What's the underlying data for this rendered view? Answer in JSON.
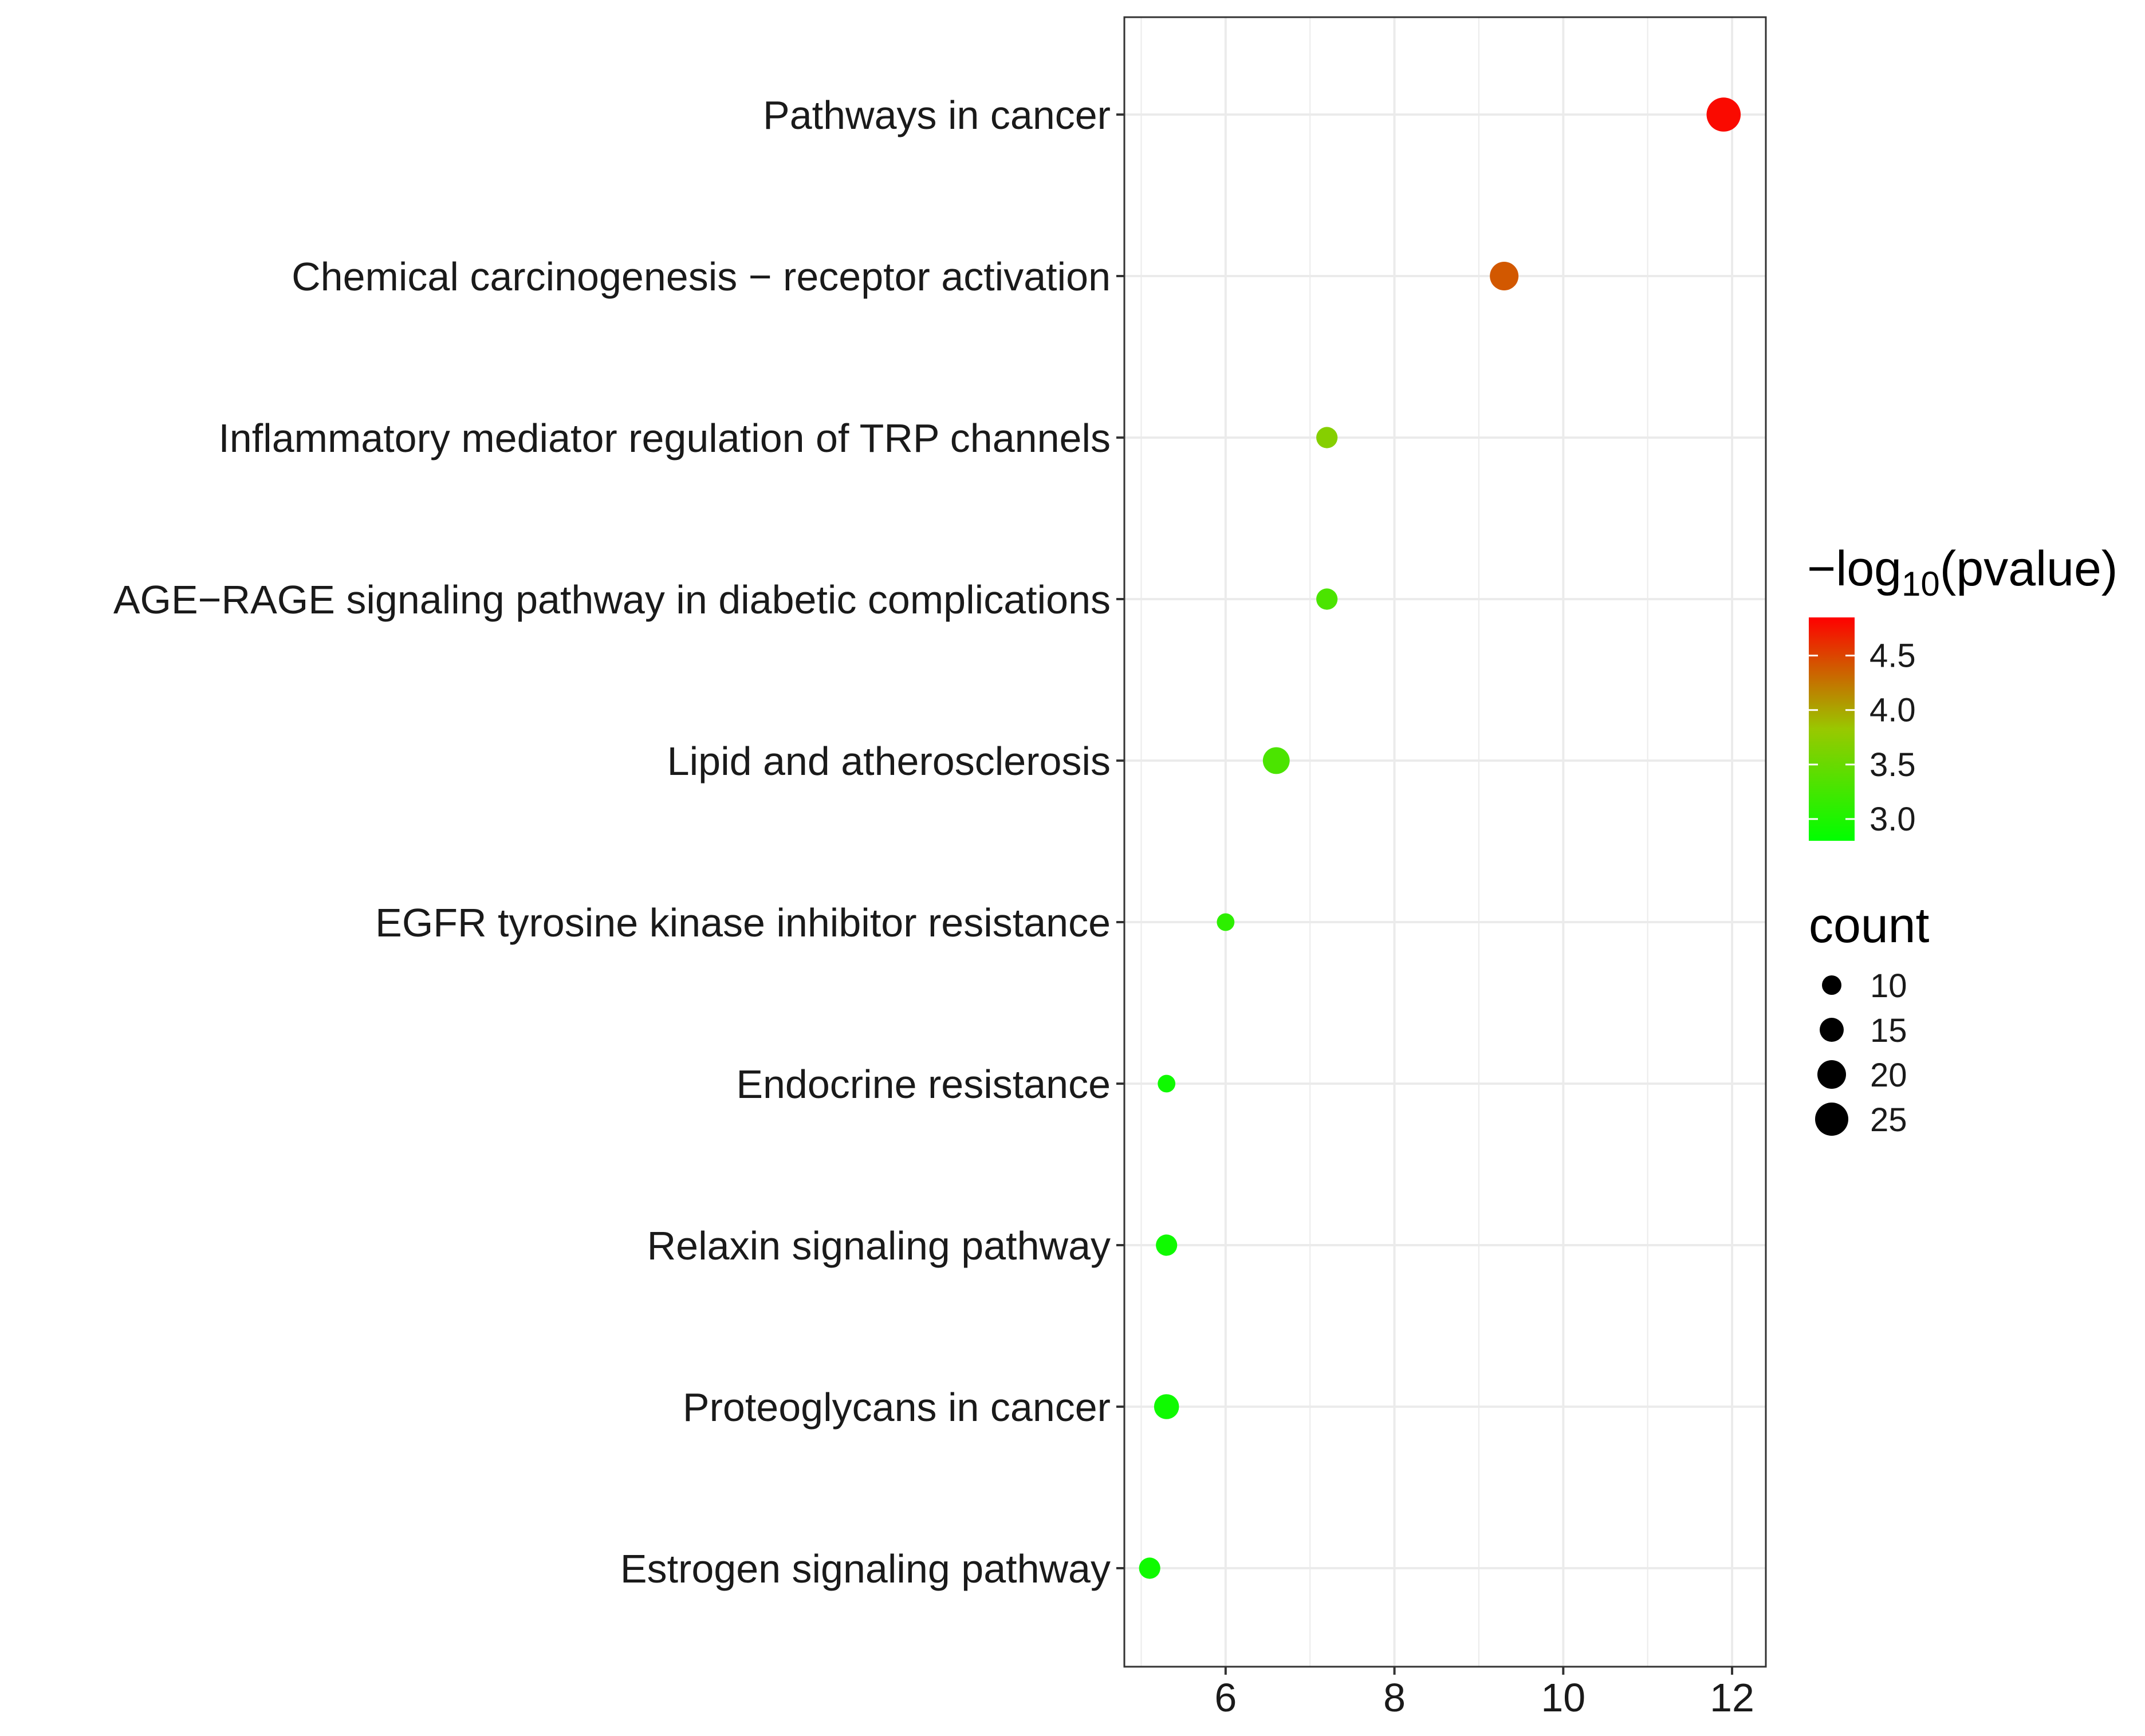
{
  "chart_data": {
    "type": "scatter",
    "title": "",
    "xlabel": "",
    "ylabel": "",
    "xlim": [
      4.8,
      12.4
    ],
    "x_ticks": [
      6,
      8,
      10,
      12
    ],
    "x_minor_ticks": [
      5,
      7,
      9,
      11
    ],
    "grid": true,
    "categories": [
      "Pathways in cancer",
      "Chemical carcinogenesis − receptor activation",
      "Inflammatory mediator regulation of TRP channels",
      "AGE−RAGE signaling pathway in diabetic complications",
      "Lipid and atherosclerosis",
      "EGFR tyrosine kinase inhibitor resistance",
      "Endocrine resistance",
      "Relaxin signaling pathway",
      "Proteoglycans in cancer",
      "Estrogen signaling pathway"
    ],
    "points": [
      {
        "category": "Pathways in cancer",
        "x": 11.9,
        "count": 26,
        "neg_log10_p": 4.8
      },
      {
        "category": "Chemical carcinogenesis − receptor activation",
        "x": 9.3,
        "count": 20,
        "neg_log10_p": 4.4
      },
      {
        "category": "Inflammatory mediator regulation of TRP channels",
        "x": 7.2,
        "count": 12,
        "neg_log10_p": 3.7
      },
      {
        "category": "AGE−RAGE signaling pathway in diabetic complications",
        "x": 7.2,
        "count": 12,
        "neg_log10_p": 3.3
      },
      {
        "category": "Lipid and atherosclerosis",
        "x": 6.6,
        "count": 18,
        "neg_log10_p": 3.3
      },
      {
        "category": "EGFR tyrosine kinase inhibitor resistance",
        "x": 6.0,
        "count": 8,
        "neg_log10_p": 3.1
      },
      {
        "category": "Endocrine resistance",
        "x": 5.3,
        "count": 8,
        "neg_log10_p": 2.9
      },
      {
        "category": "Relaxin signaling pathway",
        "x": 5.3,
        "count": 12,
        "neg_log10_p": 2.9
      },
      {
        "category": "Proteoglycans in cancer",
        "x": 5.3,
        "count": 16,
        "neg_log10_p": 2.9
      },
      {
        "category": "Estrogen signaling pathway",
        "x": 5.1,
        "count": 12,
        "neg_log10_p": 2.9
      }
    ],
    "color_legend": {
      "title_main": "−log",
      "title_sub": "10",
      "title_tail": "(pvalue)",
      "range": [
        2.8,
        4.85
      ],
      "ticks": [
        3.0,
        3.5,
        4.0,
        4.5
      ],
      "tick_labels": [
        "3.0",
        "3.5",
        "4.0",
        "4.5"
      ],
      "low_color": "#00ff00",
      "high_color": "#ff0000"
    },
    "size_legend": {
      "title": "count",
      "values": [
        10,
        15,
        20,
        25
      ],
      "labels": [
        "10",
        "15",
        "20",
        "25"
      ]
    },
    "legend_position": "right",
    "colors": {
      "grid": "#ebebeb",
      "panel_border": "#333333",
      "axis_ticks": "#333333"
    }
  }
}
